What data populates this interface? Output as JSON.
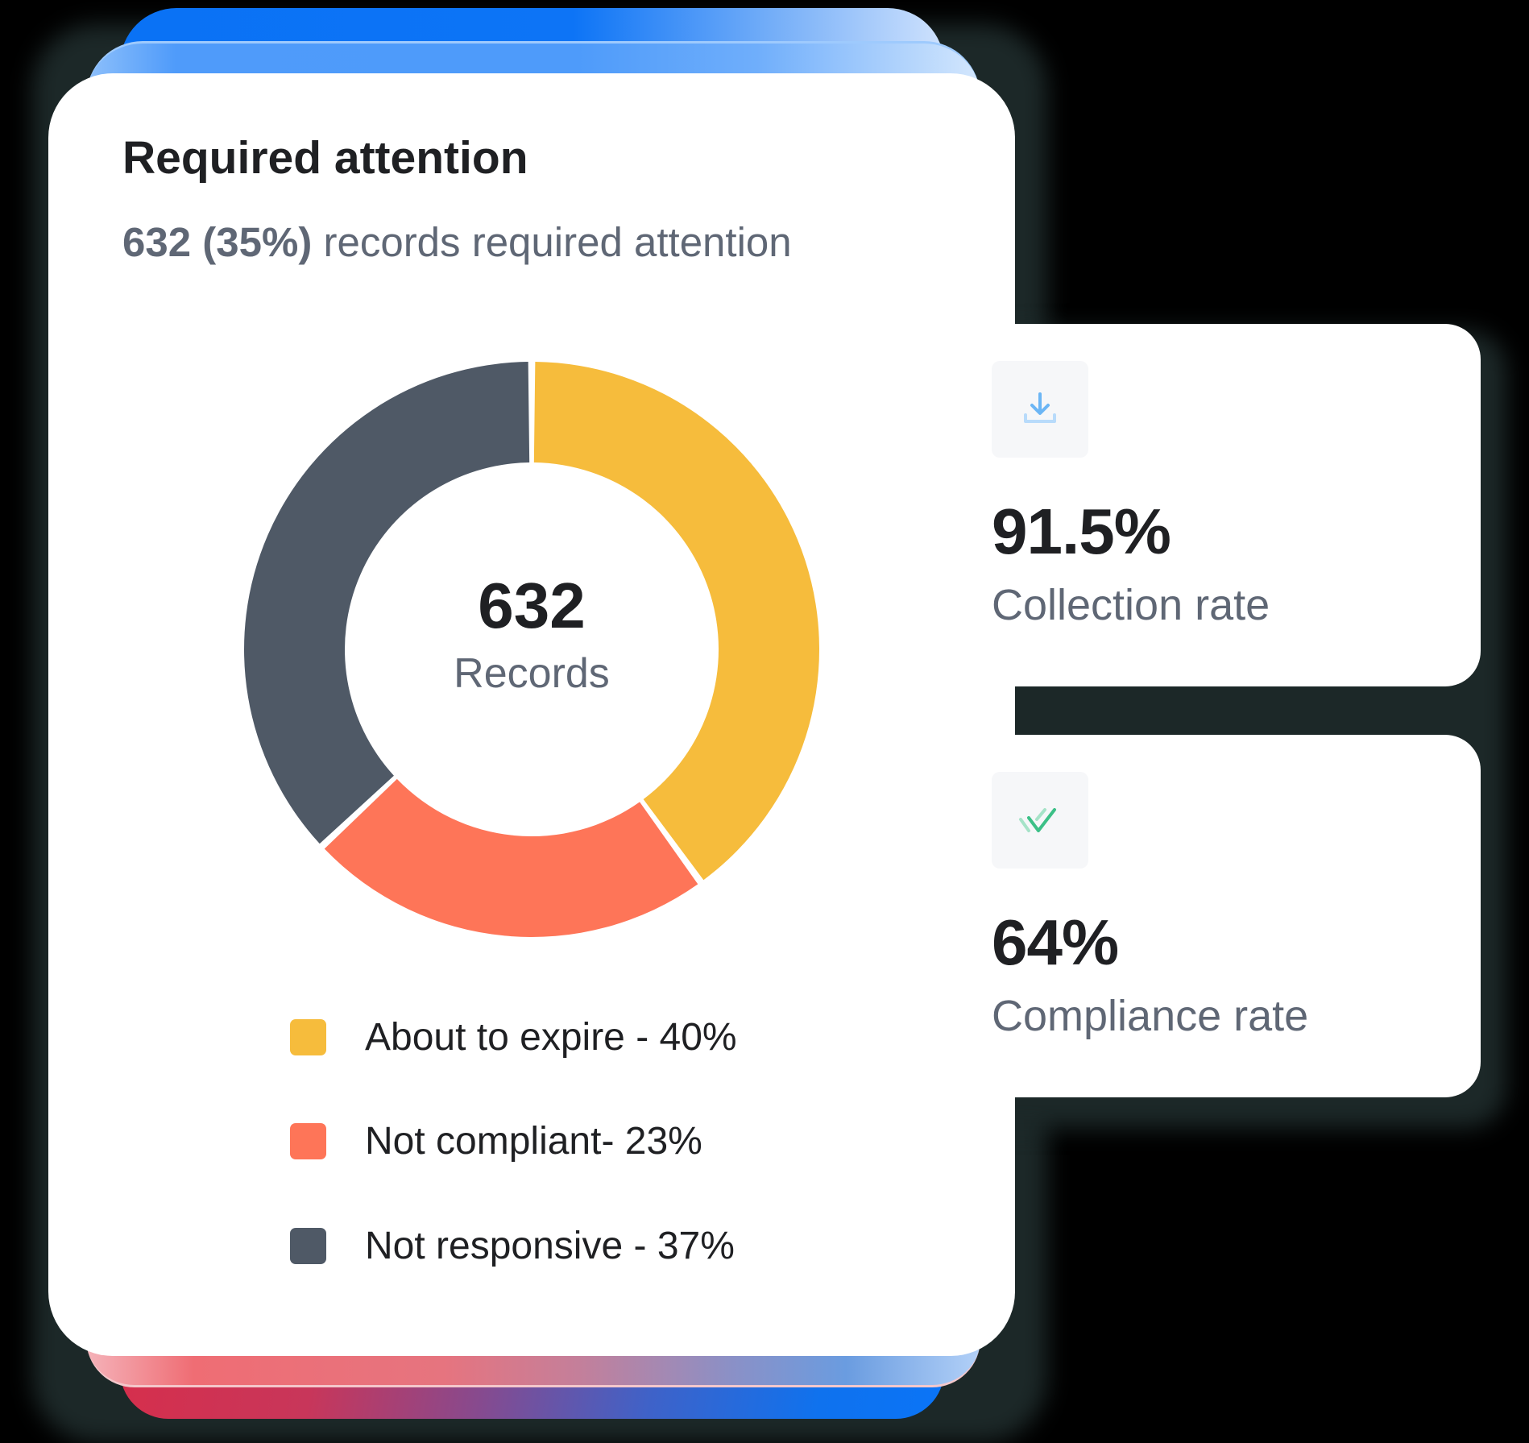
{
  "main_card": {
    "title": "Required attention",
    "subtitle_bold": "632 (35%)",
    "subtitle_rest": " records required attention",
    "center_value": "632",
    "center_label": "Records",
    "legend": [
      {
        "label": "About to expire - 40%",
        "color": "#f6bc3c"
      },
      {
        "label": "Not compliant- 23%",
        "color": "#fe7558"
      },
      {
        "label": "Not responsive - 37%",
        "color": "#4f5966"
      }
    ]
  },
  "stats": [
    {
      "icon": "download-icon",
      "value": "91.5%",
      "label": "Collection rate",
      "icon_color": "#6cb6f5"
    },
    {
      "icon": "double-check-icon",
      "value": "64%",
      "label": "Compliance rate",
      "icon_color": "#3cc087"
    }
  ],
  "chart_data": {
    "type": "pie",
    "title": "Required attention",
    "subtitle": "632 (35%) records required attention",
    "categories": [
      "About to expire",
      "Not compliant",
      "Not responsive"
    ],
    "values": [
      40,
      23,
      37
    ],
    "units": "%",
    "colors": [
      "#f6bc3c",
      "#fe7558",
      "#4f5966"
    ],
    "donut": true,
    "center_text": {
      "value": "632",
      "label": "Records"
    },
    "legend_position": "bottom"
  }
}
